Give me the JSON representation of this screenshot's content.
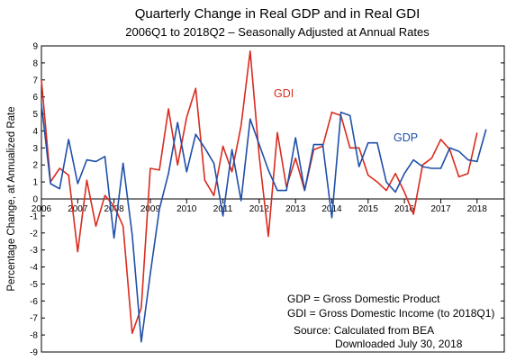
{
  "chart_data": {
    "type": "line",
    "title": "Quarterly Change in Real GDP and in Real GDI",
    "subtitle": "2006Q1 to 2018Q2 – Seasonally Adjusted at Annual Rates",
    "ylabel": "Percentage Change, at Annualized Rate",
    "xlabel": "",
    "ylim": [
      -9,
      9
    ],
    "xlim": [
      2006.0,
      2018.75
    ],
    "yticks": [
      "9",
      "8",
      "7",
      "6",
      "5",
      "4",
      "3",
      "2",
      "1",
      "0",
      "-1",
      "-2",
      "-3",
      "-4",
      "-5",
      "-6",
      "-7",
      "-8",
      "-9"
    ],
    "xticks": [
      "2006",
      "2007",
      "2008",
      "2009",
      "2010",
      "2011",
      "2012",
      "2013",
      "2014",
      "2015",
      "2016",
      "2017",
      "2018"
    ],
    "grid": false,
    "series": [
      {
        "name": "GDI",
        "color": "#d92b1f",
        "x": [
          "2006Q1",
          "2006Q2",
          "2006Q3",
          "2006Q4",
          "2007Q1",
          "2007Q2",
          "2007Q3",
          "2007Q4",
          "2008Q1",
          "2008Q2",
          "2008Q3",
          "2008Q4",
          "2009Q1",
          "2009Q2",
          "2009Q3",
          "2009Q4",
          "2010Q1",
          "2010Q2",
          "2010Q3",
          "2010Q4",
          "2011Q1",
          "2011Q2",
          "2011Q3",
          "2011Q4",
          "2012Q1",
          "2012Q2",
          "2012Q3",
          "2012Q4",
          "2013Q1",
          "2013Q2",
          "2013Q3",
          "2013Q4",
          "2014Q1",
          "2014Q2",
          "2014Q3",
          "2014Q4",
          "2015Q1",
          "2015Q2",
          "2015Q3",
          "2015Q4",
          "2016Q1",
          "2016Q2",
          "2016Q3",
          "2016Q4",
          "2017Q1",
          "2017Q2",
          "2017Q3",
          "2017Q4",
          "2018Q1"
        ],
        "y": [
          7.0,
          1.0,
          1.8,
          1.4,
          -3.1,
          1.1,
          -1.6,
          0.2,
          -0.4,
          -1.6,
          -7.9,
          -6.4,
          1.8,
          1.7,
          5.3,
          2.0,
          4.8,
          6.5,
          1.1,
          0.2,
          3.1,
          1.6,
          4.3,
          8.7,
          2.5,
          -2.2,
          3.9,
          0.7,
          2.4,
          0.5,
          2.9,
          3.1,
          5.1,
          4.9,
          3.0,
          3.0,
          1.4,
          1.0,
          0.5,
          1.5,
          0.4,
          -0.9,
          2.0,
          2.4,
          3.5,
          2.9,
          1.3,
          1.5,
          3.9
        ]
      },
      {
        "name": "GDP",
        "color": "#1f4fa8",
        "x": [
          "2006Q1",
          "2006Q2",
          "2006Q3",
          "2006Q4",
          "2007Q1",
          "2007Q2",
          "2007Q3",
          "2007Q4",
          "2008Q1",
          "2008Q2",
          "2008Q3",
          "2008Q4",
          "2009Q1",
          "2009Q2",
          "2009Q3",
          "2009Q4",
          "2010Q1",
          "2010Q2",
          "2010Q3",
          "2010Q4",
          "2011Q1",
          "2011Q2",
          "2011Q3",
          "2011Q4",
          "2012Q1",
          "2012Q2",
          "2012Q3",
          "2012Q4",
          "2013Q1",
          "2013Q2",
          "2013Q3",
          "2013Q4",
          "2014Q1",
          "2014Q2",
          "2014Q3",
          "2014Q4",
          "2015Q1",
          "2015Q2",
          "2015Q3",
          "2015Q4",
          "2016Q1",
          "2016Q2",
          "2016Q3",
          "2016Q4",
          "2017Q1",
          "2017Q2",
          "2017Q3",
          "2017Q4",
          "2018Q1",
          "2018Q2"
        ],
        "y": [
          5.6,
          0.9,
          0.6,
          3.5,
          0.9,
          2.3,
          2.2,
          2.5,
          -2.3,
          2.1,
          -2.1,
          -8.4,
          -4.4,
          -0.6,
          1.5,
          4.5,
          1.6,
          3.8,
          3.0,
          2.1,
          -1.0,
          2.9,
          -0.1,
          4.7,
          3.2,
          1.7,
          0.5,
          0.5,
          3.6,
          0.5,
          3.2,
          3.2,
          -1.1,
          5.1,
          4.9,
          1.9,
          3.3,
          3.3,
          1.0,
          0.4,
          1.5,
          2.3,
          1.9,
          1.8,
          1.8,
          3.0,
          2.8,
          2.3,
          2.2,
          4.1
        ]
      }
    ],
    "annotations": [
      "GDP = Gross Domestic Product",
      "GDI = Gross Domestic Income (to 2018Q1)",
      "Source:  Calculated from BEA",
      "Downloaded July 30, 2018"
    ]
  }
}
